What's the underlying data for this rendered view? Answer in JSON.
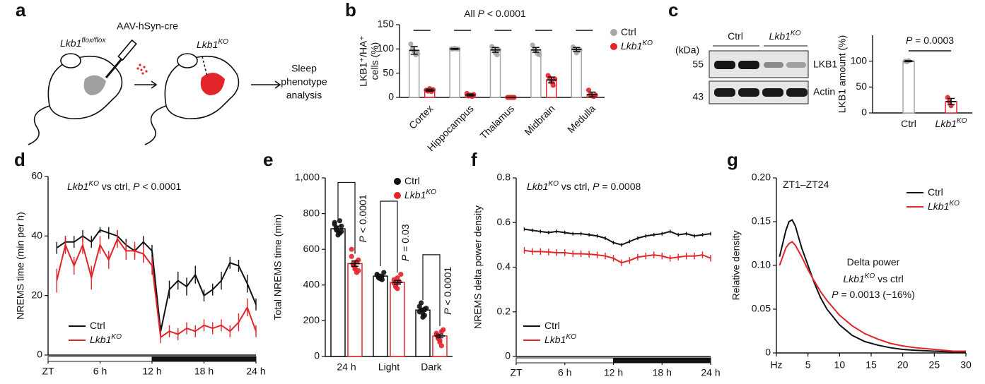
{
  "schematic": {
    "letter": "a",
    "vector": "AAV-hSyn-cre",
    "before": [
      {
        "t": "Lkb1",
        "f": "i"
      },
      {
        "t": "flox/flox",
        "f": "s"
      }
    ],
    "after": [
      {
        "t": "Lkb1",
        "f": "i"
      },
      {
        "t": "KO",
        "f": "s"
      }
    ],
    "outcome": [
      "Sleep",
      "phenotype",
      "analysis"
    ]
  },
  "blot": {
    "letter": "c",
    "unit": "(kDa)",
    "markers": [
      55,
      43
    ],
    "lanes": [
      [
        {
          "t": "Ctrl",
          "f": "r"
        }
      ],
      [
        {
          "t": "Lkb1",
          "f": "i"
        },
        {
          "t": "KO",
          "f": "s"
        }
      ]
    ],
    "proteins": [
      "LKB1",
      "Actin"
    ]
  },
  "chart_data": [
    {
      "type": "bar",
      "letter": "b",
      "ylabel": [
        "LKB1⁺/HA⁺",
        "cells (%)"
      ],
      "annotations": [
        [
          {
            "t": "All ",
            "f": "r"
          },
          {
            "t": "P",
            "f": "i"
          },
          {
            "t": " < 0.0001",
            "f": "r"
          }
        ]
      ],
      "categories": [
        "Cortex",
        "Hippocampus",
        "Thalamus",
        "Midbrain",
        "Medulla"
      ],
      "xlabel_rotation": -45,
      "ylim": [
        0,
        150
      ],
      "yticks": [
        0,
        50,
        100,
        150
      ],
      "series": [
        {
          "name": [
            {
              "t": "Ctrl",
              "f": "r"
            }
          ],
          "color": "#a6a6a6",
          "values": [
            97,
            100,
            98,
            98,
            99
          ],
          "errors": [
            8,
            1,
            5,
            5,
            4
          ],
          "points": [
            [
              110,
              100,
              95,
              88,
              90
            ],
            [
              100,
              100,
              101,
              100,
              100
            ],
            [
              105,
              100,
              92,
              88,
              98
            ],
            [
              108,
              100,
              95,
              90,
              88
            ],
            [
              104,
              100,
              92,
              96,
              98
            ]
          ]
        },
        {
          "name": [
            {
              "t": "Lkb1",
              "f": "i"
            },
            {
              "t": "KO",
              "f": "s"
            }
          ],
          "color": "#e2242b",
          "values": [
            15,
            5,
            0,
            36,
            6
          ],
          "errors": [
            2,
            2,
            0,
            6,
            5
          ],
          "points": [
            [
              15,
              13,
              18,
              12,
              16
            ],
            [
              8,
              3,
              5,
              2,
              6
            ],
            [
              0,
              0,
              0,
              0,
              0
            ],
            [
              45,
              40,
              32,
              25,
              38
            ],
            [
              15,
              5,
              3,
              2,
              5
            ]
          ]
        }
      ]
    },
    {
      "type": "bar",
      "ylabel": "LKB1 amount (%)",
      "annotations": [
        [
          {
            "t": "P",
            "f": "i"
          },
          {
            "t": " = 0.0003",
            "f": "r"
          }
        ]
      ],
      "categories": [
        [
          {
            "t": "Ctrl",
            "f": "r"
          }
        ],
        [
          {
            "t": "Lkb1",
            "f": "i"
          },
          {
            "t": "KO",
            "f": "s"
          }
        ]
      ],
      "ylim": [
        0,
        150
      ],
      "yticks": [
        0,
        50,
        100
      ],
      "series": [
        {
          "name": [
            {
              "t": "Ctrl",
              "f": "r"
            }
          ],
          "color": "#a6a6a6",
          "values": [
            100,
            22
          ],
          "errors": [
            1,
            6
          ],
          "points": [
            [
              100,
              99,
              101
            ],
            [
              30,
              22,
              14
            ]
          ]
        }
      ]
    },
    {
      "type": "line",
      "letter": "d",
      "ylabel": "NREMS time (min per h)",
      "light_dark_bar": true,
      "annotations": [
        [
          {
            "t": "Lkb1",
            "f": "i"
          },
          {
            "t": "KO",
            "f": "s"
          },
          {
            "t": " vs ctrl, ",
            "f": "r"
          },
          {
            "t": "P",
            "f": "i"
          },
          {
            "t": " < 0.0001",
            "f": "r"
          }
        ]
      ],
      "x": [
        1,
        2,
        3,
        4,
        5,
        6,
        7,
        8,
        9,
        10,
        11,
        12,
        13,
        14,
        15,
        16,
        17,
        18,
        19,
        20,
        21,
        22,
        23,
        24
      ],
      "xlim": [
        0,
        24
      ],
      "xticks": [
        {
          "value": 0,
          "label": "ZT"
        },
        {
          "value": 6,
          "label": "6 h"
        },
        {
          "value": 12,
          "label": "12 h"
        },
        {
          "value": 18,
          "label": "18 h"
        },
        {
          "value": 24,
          "label": "24 h"
        }
      ],
      "ylim": [
        0,
        60
      ],
      "yticks": [
        0,
        20,
        40,
        60
      ],
      "series": [
        {
          "name": [
            {
              "t": "Ctrl",
              "f": "r"
            }
          ],
          "color": "#111111",
          "values": [
            36,
            38,
            38,
            40,
            38,
            42,
            41,
            40,
            37,
            35,
            38,
            35,
            8,
            22,
            25,
            23,
            27,
            20,
            22,
            25,
            31,
            30,
            24,
            17
          ],
          "errors": [
            2,
            2,
            2,
            2,
            2,
            1,
            2,
            2,
            2,
            2,
            2,
            2,
            2,
            3,
            3,
            3,
            3,
            2,
            2,
            3,
            2,
            2,
            3,
            2
          ]
        },
        {
          "name": [
            {
              "t": "Lkb1",
              "f": "i"
            },
            {
              "t": "KO",
              "f": "s"
            }
          ],
          "color": "#e2242b",
          "values": [
            25,
            37,
            30,
            37,
            26,
            37,
            32,
            39,
            35,
            35,
            34,
            30,
            6,
            8,
            7,
            9,
            8,
            10,
            9,
            10,
            8,
            11,
            16,
            8
          ],
          "errors": [
            4,
            3,
            3,
            3,
            4,
            3,
            3,
            3,
            3,
            3,
            3,
            3,
            2,
            2,
            2,
            2,
            2,
            2,
            2,
            2,
            2,
            3,
            3,
            2
          ]
        }
      ]
    },
    {
      "type": "bar",
      "letter": "e",
      "ylabel": "Total NREMS time (min)",
      "categories": [
        "24 h",
        "Light",
        "Dark"
      ],
      "ylim": [
        0,
        1000
      ],
      "yticks": [
        0,
        200,
        400,
        600,
        800,
        {
          "value": 1000,
          "label": "1,000"
        }
      ],
      "p_labels": [
        [
          {
            "t": "P",
            "f": "i"
          },
          {
            "t": " < 0.0001",
            "f": "r"
          }
        ],
        [
          {
            "t": "P",
            "f": "i"
          },
          {
            "t": " = 0.03",
            "f": "r"
          }
        ],
        [
          {
            "t": "P",
            "f": "i"
          },
          {
            "t": " < 0.0001",
            "f": "r"
          }
        ]
      ],
      "series": [
        {
          "name": [
            {
              "t": "Ctrl",
              "f": "r"
            }
          ],
          "color": "#111111",
          "values": [
            715,
            450,
            260
          ],
          "errors": [
            15,
            6,
            8
          ],
          "points": [
            [
              740,
              720,
              700,
              690,
              730,
              750,
              710,
              680,
              760,
              700
            ],
            [
              460,
              440,
              450,
              430,
              470,
              455,
              445,
              435
            ],
            [
              280,
              260,
              240,
              230,
              270,
              250,
              300,
              220,
              265
            ]
          ]
        },
        {
          "name": [
            {
              "t": "Lkb1",
              "f": "i"
            },
            {
              "t": "KO",
              "f": "s"
            }
          ],
          "color": "#e2242b",
          "values": [
            520,
            415,
            115
          ],
          "errors": [
            15,
            10,
            10
          ],
          "points": [
            [
              560,
              520,
              490,
              470,
              540,
              600,
              510,
              500,
              530,
              480
            ],
            [
              430,
              400,
              380,
              420,
              460,
              410,
              390,
              440
            ],
            [
              130,
              100,
              80,
              60,
              150,
              120,
              110,
              90,
              140
            ]
          ]
        }
      ]
    },
    {
      "type": "line",
      "letter": "f",
      "ylabel": "NREMS delta power density",
      "light_dark_bar": true,
      "annotations": [
        [
          {
            "t": "Lkb1",
            "f": "i"
          },
          {
            "t": "KO",
            "f": "s"
          },
          {
            "t": " vs ctrl, ",
            "f": "r"
          },
          {
            "t": "P",
            "f": "i"
          },
          {
            "t": " = 0.0008",
            "f": "r"
          }
        ]
      ],
      "x": [
        1,
        2,
        3,
        4,
        5,
        6,
        7,
        8,
        9,
        10,
        11,
        12,
        13,
        14,
        15,
        16,
        17,
        18,
        19,
        20,
        21,
        22,
        23,
        24
      ],
      "xlim": [
        0,
        24
      ],
      "xticks": [
        {
          "value": 0,
          "label": "ZT"
        },
        {
          "value": 6,
          "label": "6 h"
        },
        {
          "value": 12,
          "label": "12 h"
        },
        {
          "value": 18,
          "label": "18 h"
        },
        {
          "value": 24,
          "label": "24 h"
        }
      ],
      "ylim": [
        0,
        0.8
      ],
      "yticks": [
        0,
        0.2,
        0.4,
        0.6,
        0.8
      ],
      "series": [
        {
          "name": [
            {
              "t": "Ctrl",
              "f": "r"
            }
          ],
          "color": "#111111",
          "values": [
            0.57,
            0.565,
            0.56,
            0.555,
            0.56,
            0.555,
            0.55,
            0.55,
            0.545,
            0.54,
            0.53,
            0.51,
            0.5,
            0.515,
            0.53,
            0.54,
            0.545,
            0.55,
            0.56,
            0.545,
            0.55,
            0.54,
            0.545,
            0.55
          ],
          "errors": [
            0.008,
            0.008,
            0.008,
            0.008,
            0.008,
            0.008,
            0.008,
            0.008,
            0.008,
            0.008,
            0.008,
            0.008,
            0.008,
            0.008,
            0.008,
            0.008,
            0.008,
            0.008,
            0.008,
            0.008,
            0.008,
            0.008,
            0.008,
            0.008
          ]
        },
        {
          "name": [
            {
              "t": "Lkb1",
              "f": "i"
            },
            {
              "t": "KO",
              "f": "s"
            }
          ],
          "color": "#e2242b",
          "values": [
            0.475,
            0.47,
            0.47,
            0.468,
            0.465,
            0.465,
            0.46,
            0.46,
            0.458,
            0.455,
            0.45,
            0.44,
            0.42,
            0.43,
            0.445,
            0.45,
            0.455,
            0.45,
            0.44,
            0.445,
            0.45,
            0.45,
            0.455,
            0.44
          ],
          "errors": [
            0.015,
            0.015,
            0.015,
            0.015,
            0.015,
            0.015,
            0.015,
            0.015,
            0.015,
            0.015,
            0.015,
            0.015,
            0.015,
            0.015,
            0.015,
            0.015,
            0.015,
            0.015,
            0.015,
            0.015,
            0.015,
            0.015,
            0.015,
            0.015
          ]
        }
      ]
    },
    {
      "type": "line",
      "letter": "g",
      "ylabel": "Relative density",
      "annotations": [
        [
          {
            "t": "ZT1–ZT24",
            "f": "r"
          }
        ],
        [
          {
            "t": "Delta power",
            "f": "r"
          }
        ],
        [
          {
            "t": "Lkb1",
            "f": "i"
          },
          {
            "t": "KO",
            "f": "s"
          },
          {
            "t": " vs ctrl",
            "f": "r"
          }
        ],
        [
          {
            "t": "P",
            "f": "i"
          },
          {
            "t": " = 0.0013 (−16%)",
            "f": "r"
          }
        ]
      ],
      "x": [
        0.5,
        1,
        1.5,
        2,
        2.5,
        3,
        4,
        5,
        6,
        7,
        8,
        10,
        12,
        14,
        16,
        18,
        20,
        22,
        25,
        28,
        30
      ],
      "xlim": [
        0,
        30
      ],
      "xticks": [
        {
          "value": 0,
          "label": "Hz"
        },
        5,
        10,
        15,
        20,
        25,
        30
      ],
      "ylim": [
        0,
        0.2
      ],
      "yticks": [
        0,
        0.05,
        {
          "value": 0.1,
          "label": "0.10"
        },
        0.15,
        {
          "value": 0.2,
          "label": "0.20"
        }
      ],
      "series": [
        {
          "name": [
            {
              "t": "Ctrl",
              "f": "r"
            }
          ],
          "color": "#111111",
          "values": [
            0.11,
            0.125,
            0.14,
            0.15,
            0.152,
            0.145,
            0.12,
            0.1,
            0.08,
            0.063,
            0.05,
            0.032,
            0.02,
            0.013,
            0.009,
            0.006,
            0.004,
            0.003,
            0.002,
            0.001,
            0.001
          ]
        },
        {
          "name": [
            {
              "t": "Lkb1",
              "f": "i"
            },
            {
              "t": "KO",
              "f": "s"
            }
          ],
          "color": "#e2242b",
          "values": [
            0.1,
            0.11,
            0.12,
            0.125,
            0.127,
            0.123,
            0.11,
            0.095,
            0.082,
            0.07,
            0.06,
            0.043,
            0.031,
            0.022,
            0.016,
            0.011,
            0.008,
            0.006,
            0.004,
            0.002,
            0.002
          ]
        }
      ]
    }
  ]
}
